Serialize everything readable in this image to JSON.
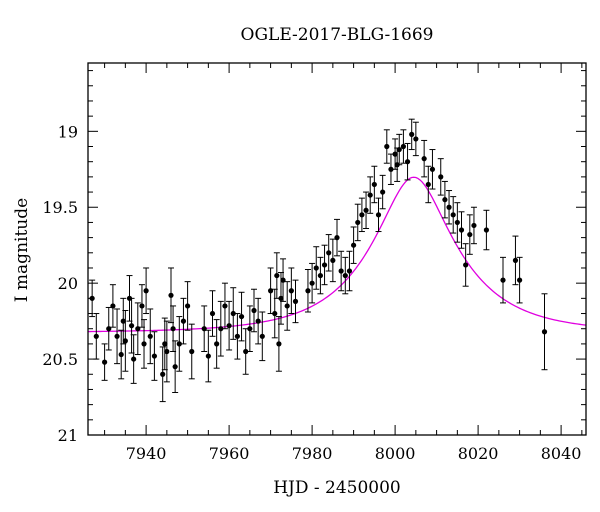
{
  "chart_data": {
    "type": "scatter",
    "title": "OGLE-2017-BLG-1669",
    "xlabel": "HJD - 2450000",
    "ylabel": "I magnitude",
    "xlim": [
      7926,
      8046
    ],
    "ylim": [
      21,
      18.55
    ],
    "y_inverted": true,
    "xticks": [
      7940,
      7960,
      7980,
      8000,
      8020,
      8040
    ],
    "yticks": [
      19,
      19.5,
      20,
      20.5,
      21
    ],
    "ytick_labels": [
      "19",
      "19.5",
      "20",
      "20.5",
      "21"
    ],
    "grid": false,
    "legend": "none",
    "colors": {
      "points": "#000000",
      "model": "#e000e0"
    },
    "model": {
      "t0": 8004.5,
      "tE": 20,
      "u0": 0.38,
      "baseline": 20.325,
      "Isrc": 20.46,
      "color": "#e000e0"
    },
    "series": [
      {
        "points": [
          [
            7927,
            20.1,
            0.12
          ],
          [
            7928,
            20.35,
            0.15
          ],
          [
            7930,
            20.52,
            0.12
          ],
          [
            7931,
            20.3,
            0.14
          ],
          [
            7932,
            20.15,
            0.14
          ],
          [
            7933,
            20.35,
            0.18
          ],
          [
            7934,
            20.47,
            0.16
          ],
          [
            7934.5,
            20.25,
            0.15
          ],
          [
            7935,
            20.38,
            0.2
          ],
          [
            7936,
            20.1,
            0.15
          ],
          [
            7936.5,
            20.28,
            0.18
          ],
          [
            7937,
            20.5,
            0.16
          ],
          [
            7938,
            20.3,
            0.17
          ],
          [
            7939,
            20.15,
            0.14
          ],
          [
            7939.5,
            20.4,
            0.16
          ],
          [
            7940,
            20.05,
            0.15
          ],
          [
            7941,
            20.35,
            0.18
          ],
          [
            7942,
            20.48,
            0.16
          ],
          [
            7944,
            20.6,
            0.18
          ],
          [
            7944.5,
            20.4,
            0.17
          ],
          [
            7945,
            20.45,
            0.2
          ],
          [
            7946,
            20.08,
            0.18
          ],
          [
            7946.5,
            20.3,
            0.15
          ],
          [
            7947,
            20.55,
            0.17
          ],
          [
            7948,
            20.4,
            0.18
          ],
          [
            7949,
            20.25,
            0.15
          ],
          [
            7950,
            20.15,
            0.16
          ],
          [
            7951,
            20.45,
            0.18
          ],
          [
            7954,
            20.3,
            0.15
          ],
          [
            7955,
            20.48,
            0.17
          ],
          [
            7956,
            20.2,
            0.15
          ],
          [
            7957,
            20.4,
            0.16
          ],
          [
            7958,
            20.3,
            0.18
          ],
          [
            7959,
            20.15,
            0.15
          ],
          [
            7960,
            20.28,
            0.16
          ],
          [
            7961,
            20.2,
            0.17
          ],
          [
            7962,
            20.35,
            0.15
          ],
          [
            7963,
            20.22,
            0.16
          ],
          [
            7964,
            20.45,
            0.15
          ],
          [
            7965,
            20.3,
            0.15
          ],
          [
            7966,
            20.18,
            0.14
          ],
          [
            7967,
            20.25,
            0.15
          ],
          [
            7968,
            20.35,
            0.16
          ],
          [
            7970,
            20.05,
            0.15
          ],
          [
            7971,
            20.2,
            0.16
          ],
          [
            7971.5,
            19.95,
            0.15
          ],
          [
            7972,
            20.4,
            0.18
          ],
          [
            7972.5,
            20.1,
            0.17
          ],
          [
            7973,
            19.98,
            0.14
          ],
          [
            7974,
            20.15,
            0.16
          ],
          [
            7975,
            20.05,
            0.15
          ],
          [
            7976,
            20.12,
            0.14
          ],
          [
            7979,
            20.05,
            0.14
          ],
          [
            7980,
            20.0,
            0.13
          ],
          [
            7981,
            19.9,
            0.14
          ],
          [
            7982,
            19.95,
            0.12
          ],
          [
            7983,
            19.88,
            0.13
          ],
          [
            7984,
            19.8,
            0.12
          ],
          [
            7985,
            19.85,
            0.14
          ],
          [
            7986,
            19.7,
            0.12
          ],
          [
            7987,
            19.92,
            0.13
          ],
          [
            7988,
            19.95,
            0.12
          ],
          [
            7989,
            19.92,
            0.13
          ],
          [
            7990,
            19.75,
            0.12
          ],
          [
            7991,
            19.6,
            0.12
          ],
          [
            7992,
            19.55,
            0.11
          ],
          [
            7993,
            19.52,
            0.12
          ],
          [
            7994,
            19.42,
            0.12
          ],
          [
            7995,
            19.35,
            0.12
          ],
          [
            7996,
            19.55,
            0.11
          ],
          [
            7997,
            19.4,
            0.11
          ],
          [
            7998,
            19.1,
            0.11
          ],
          [
            7999,
            19.25,
            0.1
          ],
          [
            8000,
            19.15,
            0.1
          ],
          [
            8000.5,
            19.22,
            0.11
          ],
          [
            8001,
            19.12,
            0.1
          ],
          [
            8002,
            19.1,
            0.11
          ],
          [
            8003,
            19.2,
            0.12
          ],
          [
            8004,
            19.02,
            0.1
          ],
          [
            8005,
            19.05,
            0.11
          ],
          [
            8007,
            19.18,
            0.12
          ],
          [
            8008,
            19.35,
            0.12
          ],
          [
            8009,
            19.25,
            0.13
          ],
          [
            8011,
            19.3,
            0.12
          ],
          [
            8012,
            19.45,
            0.12
          ],
          [
            8013,
            19.5,
            0.11
          ],
          [
            8014,
            19.55,
            0.12
          ],
          [
            8015,
            19.6,
            0.13
          ],
          [
            8016,
            19.65,
            0.12
          ],
          [
            8017,
            19.88,
            0.14
          ],
          [
            8018,
            19.68,
            0.13
          ],
          [
            8019,
            19.62,
            0.12
          ],
          [
            8022,
            19.65,
            0.13
          ],
          [
            8026,
            19.98,
            0.15
          ],
          [
            8029,
            19.85,
            0.16
          ],
          [
            8030,
            19.98,
            0.15
          ],
          [
            8036,
            20.32,
            0.25
          ]
        ]
      }
    ]
  }
}
